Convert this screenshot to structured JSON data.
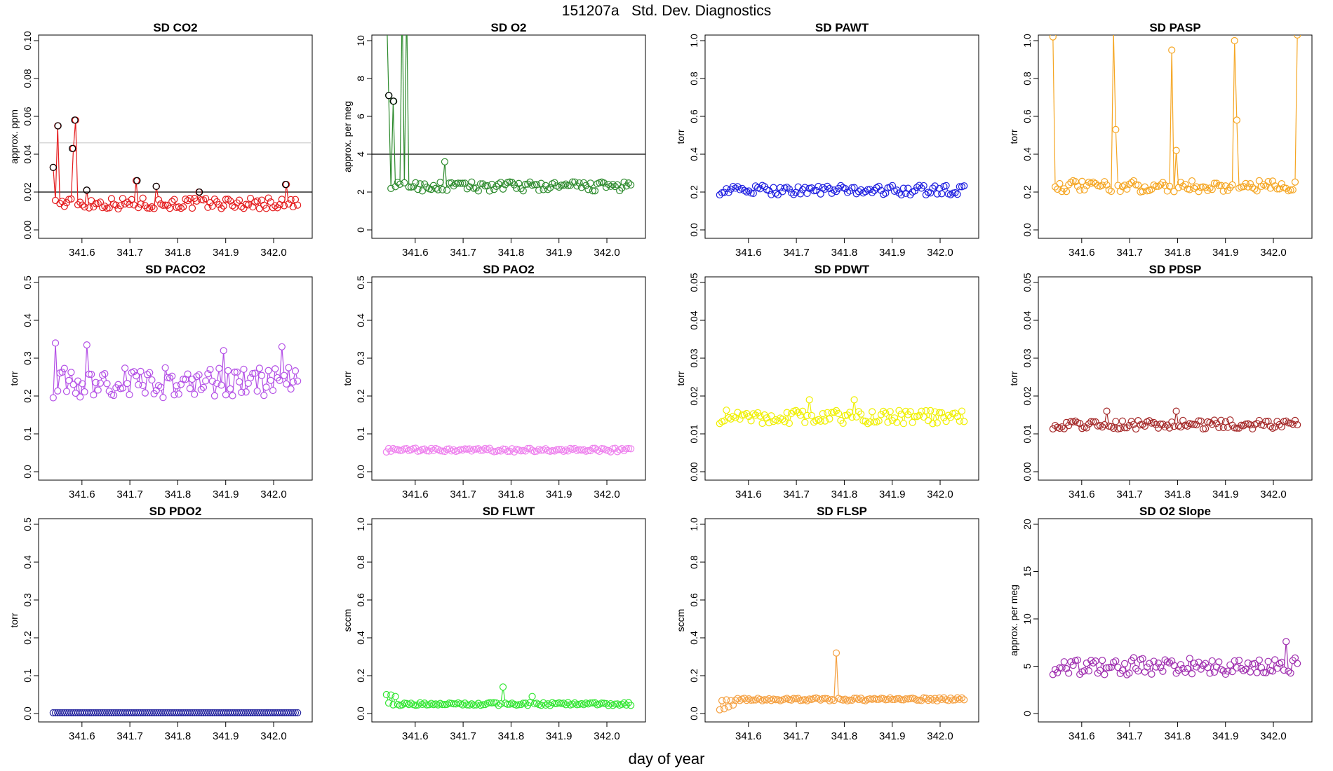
{
  "figure": {
    "title": "151207a   Std. Dev. Diagnostics",
    "xlabel": "day of year"
  },
  "chart_data": [
    {
      "type": "line",
      "title": "SD CO2",
      "ylabel": "approx. ppm",
      "color": "#e41a1c",
      "xlim": [
        341.53,
        342.06
      ],
      "ylim": [
        0,
        0.1
      ],
      "yticks": [
        "0.00",
        "0.02",
        "0.04",
        "0.06",
        "0.08",
        "0.10"
      ],
      "xticks": [
        "341.6",
        "341.7",
        "341.8",
        "341.9",
        "342.0"
      ],
      "hlines": [
        {
          "y": 0.02,
          "color": "#000000"
        },
        {
          "y": 0.046,
          "color": "#cccccc"
        }
      ],
      "outlier_color": "#000000",
      "outlier_values": [
        [
          341.54,
          0.033
        ],
        [
          341.55,
          0.055
        ],
        [
          341.58,
          0.043
        ],
        [
          341.585,
          0.058
        ],
        [
          341.61,
          0.021
        ],
        [
          341.715,
          0.026
        ],
        [
          341.755,
          0.023
        ],
        [
          341.845,
          0.02
        ],
        [
          342.025,
          0.024
        ]
      ],
      "base": 0.014,
      "spread": 0.003,
      "spikes": [
        [
          341.54,
          0.033
        ],
        [
          341.55,
          0.055
        ],
        [
          341.58,
          0.043
        ],
        [
          341.585,
          0.058
        ],
        [
          341.61,
          0.021
        ],
        [
          341.715,
          0.026
        ],
        [
          341.755,
          0.023
        ],
        [
          341.845,
          0.02
        ],
        [
          342.025,
          0.024
        ]
      ]
    },
    {
      "type": "line",
      "title": "SD O2",
      "ylabel": "approx. per meg",
      "color": "#2e8b2e",
      "xlim": [
        341.53,
        342.06
      ],
      "ylim": [
        0,
        10
      ],
      "yticks": [
        "0",
        "2",
        "4",
        "6",
        "8",
        "10"
      ],
      "xticks": [
        "341.6",
        "341.7",
        "341.8",
        "341.9",
        "342.0"
      ],
      "hlines": [
        {
          "y": 4,
          "color": "#000000"
        }
      ],
      "outlier_color": "#000000",
      "outlier_values": [
        [
          341.545,
          7.1
        ],
        [
          341.555,
          6.8
        ]
      ],
      "base": 2.3,
      "spread": 0.25,
      "spikes": [
        [
          341.54,
          12
        ],
        [
          341.545,
          7.1
        ],
        [
          341.555,
          6.8
        ],
        [
          341.575,
          12
        ],
        [
          341.58,
          12
        ],
        [
          341.66,
          3.6
        ]
      ]
    },
    {
      "type": "line",
      "title": "SD PAWT",
      "ylabel": "torr",
      "color": "#1f1fe0",
      "xlim": [
        341.53,
        342.06
      ],
      "ylim": [
        0,
        1
      ],
      "yticks": [
        "0.0",
        "0.2",
        "0.4",
        "0.6",
        "0.8",
        "1.0"
      ],
      "xticks": [
        "341.6",
        "341.7",
        "341.8",
        "341.9",
        "342.0"
      ],
      "hlines": [],
      "outlier_color": "",
      "outlier_values": [],
      "base": 0.21,
      "spread": 0.025,
      "spikes": []
    },
    {
      "type": "line",
      "title": "SD PASP",
      "ylabel": "torr",
      "color": "#f5a623",
      "xlim": [
        341.53,
        342.06
      ],
      "ylim": [
        0,
        1
      ],
      "yticks": [
        "0.0",
        "0.2",
        "0.4",
        "0.6",
        "0.8",
        "1.0"
      ],
      "xticks": [
        "341.6",
        "341.7",
        "341.8",
        "341.9",
        "342.0"
      ],
      "hlines": [],
      "outlier_color": "",
      "outlier_values": [],
      "base": 0.23,
      "spread": 0.03,
      "spikes": [
        [
          341.54,
          1.02
        ],
        [
          341.665,
          1.05
        ],
        [
          341.67,
          0.53
        ],
        [
          341.79,
          0.95
        ],
        [
          341.795,
          0.42
        ],
        [
          341.92,
          1.0
        ],
        [
          341.925,
          0.58
        ],
        [
          342.06,
          1.03
        ]
      ]
    },
    {
      "type": "line",
      "title": "SD PACO2",
      "ylabel": "torr",
      "color": "#b450e6",
      "xlim": [
        341.53,
        342.06
      ],
      "ylim": [
        0,
        0.5
      ],
      "yticks": [
        "0.0",
        "0.1",
        "0.2",
        "0.3",
        "0.4",
        "0.5"
      ],
      "xticks": [
        "341.6",
        "341.7",
        "341.8",
        "341.9",
        "342.0"
      ],
      "hlines": [],
      "outlier_color": "",
      "outlier_values": [],
      "base": 0.235,
      "spread": 0.04,
      "spikes": [
        [
          341.545,
          0.34
        ],
        [
          341.61,
          0.335
        ],
        [
          341.895,
          0.32
        ],
        [
          342.015,
          0.33
        ]
      ]
    },
    {
      "type": "line",
      "title": "SD PAO2",
      "ylabel": "torr",
      "color": "#ee82ee",
      "xlim": [
        341.53,
        342.06
      ],
      "ylim": [
        0,
        0.5
      ],
      "yticks": [
        "0.0",
        "0.1",
        "0.2",
        "0.3",
        "0.4",
        "0.5"
      ],
      "xticks": [
        "341.6",
        "341.7",
        "341.8",
        "341.9",
        "342.0"
      ],
      "hlines": [],
      "outlier_color": "",
      "outlier_values": [],
      "base": 0.057,
      "spread": 0.005,
      "spikes": []
    },
    {
      "type": "line",
      "title": "SD PDWT",
      "ylabel": "torr",
      "color": "#f0f000",
      "xlim": [
        341.53,
        342.06
      ],
      "ylim": [
        0,
        0.05
      ],
      "yticks": [
        "0.00",
        "0.01",
        "0.02",
        "0.03",
        "0.04",
        "0.05"
      ],
      "xticks": [
        "341.6",
        "341.7",
        "341.8",
        "341.9",
        "342.0"
      ],
      "hlines": [],
      "outlier_color": "",
      "outlier_values": [],
      "base": 0.0145,
      "spread": 0.0018,
      "spikes": [
        [
          341.725,
          0.019
        ],
        [
          341.82,
          0.019
        ]
      ]
    },
    {
      "type": "line",
      "title": "SD PDSP",
      "ylabel": "torr",
      "color": "#a52a2a",
      "xlim": [
        341.53,
        342.06
      ],
      "ylim": [
        0,
        0.05
      ],
      "yticks": [
        "0.00",
        "0.01",
        "0.02",
        "0.03",
        "0.04",
        "0.05"
      ],
      "xticks": [
        "341.6",
        "341.7",
        "341.8",
        "341.9",
        "342.0"
      ],
      "hlines": [],
      "outlier_color": "",
      "outlier_values": [],
      "base": 0.0125,
      "spread": 0.0012,
      "spikes": [
        [
          341.65,
          0.016
        ],
        [
          341.795,
          0.016
        ]
      ]
    },
    {
      "type": "line",
      "title": "SD PDO2",
      "ylabel": "torr",
      "color": "#1f1f9c",
      "xlim": [
        341.53,
        342.06
      ],
      "ylim": [
        0,
        0.5
      ],
      "yticks": [
        "0.0",
        "0.1",
        "0.2",
        "0.3",
        "0.4",
        "0.5"
      ],
      "xticks": [
        "341.6",
        "341.7",
        "341.8",
        "341.9",
        "342.0"
      ],
      "hlines": [],
      "outlier_color": "",
      "outlier_values": [],
      "base": 0.002,
      "spread": 0,
      "spikes": []
    },
    {
      "type": "line",
      "title": "SD FLWT",
      "ylabel": "sccm",
      "color": "#33e633",
      "xlim": [
        341.53,
        342.06
      ],
      "ylim": [
        0,
        1
      ],
      "yticks": [
        "0.0",
        "0.2",
        "0.4",
        "0.6",
        "0.8",
        "1.0"
      ],
      "xticks": [
        "341.6",
        "341.7",
        "341.8",
        "341.9",
        "342.0"
      ],
      "hlines": [],
      "outlier_color": "",
      "outlier_values": [],
      "base": 0.05,
      "spread": 0.008,
      "spikes": [
        [
          341.54,
          0.1
        ],
        [
          341.55,
          0.098
        ],
        [
          341.56,
          0.09
        ],
        [
          341.785,
          0.14
        ],
        [
          341.845,
          0.09
        ]
      ]
    },
    {
      "type": "line",
      "title": "SD FLSP",
      "ylabel": "sccm",
      "color": "#f5a040",
      "xlim": [
        341.53,
        342.06
      ],
      "ylim": [
        0,
        1
      ],
      "yticks": [
        "0.0",
        "0.2",
        "0.4",
        "0.6",
        "0.8",
        "1.0"
      ],
      "xticks": [
        "341.6",
        "341.7",
        "341.8",
        "341.9",
        "342.0"
      ],
      "hlines": [],
      "outlier_color": "",
      "outlier_values": [],
      "base": 0.075,
      "spread": 0.008,
      "spikes": [
        [
          341.54,
          0.02
        ],
        [
          341.55,
          0.025
        ],
        [
          341.56,
          0.035
        ],
        [
          341.57,
          0.045
        ],
        [
          341.785,
          0.32
        ]
      ]
    },
    {
      "type": "line",
      "title": "SD O2 Slope",
      "ylabel": "approx. per meg",
      "color": "#a030b0",
      "xlim": [
        341.53,
        342.06
      ],
      "ylim": [
        0,
        20
      ],
      "yticks": [
        "0",
        "5",
        "10",
        "15",
        "20"
      ],
      "xticks": [
        "341.6",
        "341.7",
        "341.8",
        "341.9",
        "342.0"
      ],
      "hlines": [],
      "outlier_color": "",
      "outlier_values": [],
      "base": 5.0,
      "spread": 0.9,
      "spikes": [
        [
          342.025,
          7.6
        ]
      ]
    }
  ]
}
